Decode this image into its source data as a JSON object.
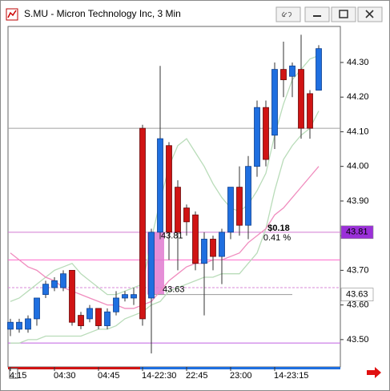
{
  "chart_data": {
    "type": "candlestick",
    "title": "S.MU - Micron Technology Inc, 3 Min",
    "categories": [
      "4:15",
      null,
      null,
      null,
      null,
      "04:30",
      null,
      null,
      null,
      null,
      "04:45",
      null,
      null,
      null,
      null,
      "14-22:30",
      null,
      null,
      null,
      null,
      "22:45",
      null,
      null,
      null,
      null,
      "23:00",
      null,
      null,
      null,
      null,
      "14-23:15",
      null,
      null,
      null,
      null,
      null
    ],
    "open": [
      43.53,
      43.53,
      43.53,
      43.56,
      43.63,
      43.65,
      43.65,
      43.7,
      43.57,
      43.56,
      43.59,
      43.54,
      43.58,
      43.62,
      43.62,
      44.11,
      43.62,
      43.81,
      44.06,
      43.94,
      43.88,
      43.86,
      43.72,
      43.79,
      43.74,
      43.81,
      43.94,
      43.83,
      44.0,
      44.17,
      44.09,
      44.28,
      44.26,
      44.28,
      44.21,
      44.22
    ],
    "high": [
      43.56,
      43.56,
      43.57,
      43.62,
      43.67,
      43.68,
      43.7,
      43.7,
      43.58,
      43.6,
      43.59,
      43.59,
      43.64,
      43.64,
      43.65,
      44.12,
      43.82,
      44.29,
      44.07,
      43.96,
      43.89,
      43.87,
      43.81,
      43.8,
      43.82,
      43.94,
      44.0,
      44.03,
      44.19,
      44.19,
      44.3,
      44.36,
      44.3,
      44.38,
      44.22,
      44.35
    ],
    "low": [
      43.51,
      43.52,
      43.52,
      43.54,
      43.62,
      43.64,
      43.64,
      43.54,
      43.53,
      43.55,
      43.53,
      43.53,
      43.57,
      43.61,
      43.6,
      43.54,
      43.46,
      43.79,
      43.73,
      43.7,
      43.8,
      43.7,
      43.57,
      43.7,
      43.66,
      43.79,
      43.8,
      43.79,
      43.97,
      44.0,
      44.05,
      44.2,
      44.2,
      44.08,
      44.08,
      44.22
    ],
    "close": [
      43.55,
      43.55,
      43.56,
      43.62,
      43.66,
      43.67,
      43.69,
      43.55,
      43.54,
      43.59,
      43.54,
      43.58,
      43.62,
      43.63,
      43.63,
      43.56,
      43.81,
      44.08,
      43.81,
      43.81,
      43.84,
      43.72,
      43.79,
      43.74,
      43.81,
      43.94,
      43.83,
      44.0,
      44.17,
      44.02,
      44.28,
      44.25,
      44.29,
      44.11,
      44.11,
      44.34
    ],
    "up_color": "#1f6fe0",
    "down_color": "#d01414",
    "overlays": [
      {
        "color": "#b9dcb9",
        "values": [
          43.61,
          43.62,
          43.64,
          43.66,
          43.68,
          43.7,
          43.71,
          43.72,
          43.69,
          43.67,
          43.65,
          43.63,
          43.63,
          43.64,
          43.65,
          43.66,
          43.79,
          43.9,
          44.0,
          44.06,
          44.08,
          44.04,
          44.0,
          43.95,
          43.91,
          43.88,
          43.87,
          43.89,
          43.93,
          43.98,
          44.09,
          44.18,
          44.25,
          44.28,
          44.31,
          44.32
        ]
      },
      {
        "color": "#b9dcb9",
        "values": [
          43.49,
          43.49,
          43.5,
          43.5,
          43.51,
          43.51,
          43.51,
          43.51,
          43.51,
          43.52,
          43.53,
          43.53,
          43.54,
          43.56,
          43.57,
          43.58,
          43.6,
          43.61,
          43.64,
          43.65,
          43.66,
          43.67,
          43.68,
          43.68,
          43.69,
          43.69,
          43.69,
          43.72,
          43.75,
          43.82,
          43.93,
          44.02,
          44.06,
          44.09,
          44.11,
          44.16
        ]
      },
      {
        "color": "#f08cbe",
        "values": [
          43.75,
          43.73,
          43.71,
          43.7,
          43.68,
          43.67,
          43.65,
          43.64,
          43.63,
          43.62,
          43.61,
          43.6,
          43.6,
          43.59,
          43.59,
          43.6,
          43.61,
          43.64,
          43.67,
          43.69,
          43.71,
          43.72,
          43.72,
          43.73,
          43.73,
          43.74,
          43.75,
          43.78,
          43.8,
          43.82,
          43.86,
          43.88,
          43.91,
          43.94,
          43.97,
          44.0
        ]
      }
    ],
    "hlines": [
      {
        "value": 44.11,
        "color": "#a0a0a0",
        "dash": false
      },
      {
        "value": 43.81,
        "color": "#d27ad2",
        "dash": false
      },
      {
        "value": 43.73,
        "color": "#ff66cc",
        "dash": false
      },
      {
        "value": 43.65,
        "color": "#d98ad9",
        "dash": true
      },
      {
        "value": 43.49,
        "color": "#c060e0",
        "dash": false
      }
    ],
    "price_markers": [
      {
        "value": 43.81,
        "color": "#9b30d9",
        "text_color": "#ffffff"
      },
      {
        "value": 43.63,
        "color": "#ffffff",
        "text_color": "#000000"
      }
    ],
    "measure": {
      "from": 43.63,
      "to": 43.81,
      "change_label": "$0.18",
      "percent_label": "0.41 %",
      "color": "#e07ad0"
    },
    "ylim": [
      43.421,
      44.404
    ],
    "yticks": [
      {
        "value": 43.5,
        "label": "43.50"
      },
      {
        "value": 43.6,
        "label": "43.60"
      },
      {
        "value": 43.7,
        "label": "43.70"
      },
      {
        "value": 43.8,
        "label": "43.80"
      },
      {
        "value": 43.9,
        "label": "43.90"
      },
      {
        "value": 44.0,
        "label": "44.00"
      },
      {
        "value": 44.1,
        "label": "44.10"
      },
      {
        "value": 44.2,
        "label": "44.20"
      },
      {
        "value": 44.3,
        "label": "44.30"
      }
    ],
    "grid": false
  }
}
